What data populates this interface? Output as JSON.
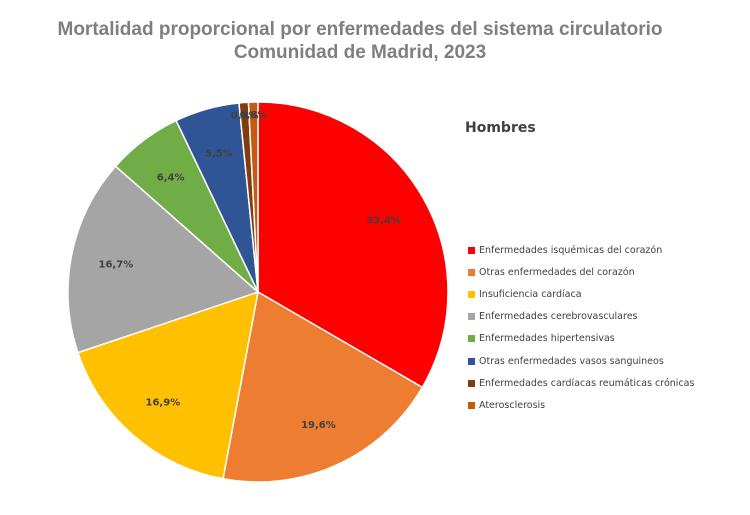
{
  "title_line1": "Mortalidad proporcional por enfermedades del sistema circulatorio",
  "title_line2": "Comunidad de Madrid, 2023",
  "chart_data": {
    "type": "pie",
    "subtitle": "Hombres",
    "legend_position": "right",
    "slices": [
      {
        "name": "Enfermedades isquémicas del corazón",
        "value": 33.4,
        "label": "33,4%",
        "color": "#ff0000"
      },
      {
        "name": "Otras enfermedades del corazón",
        "value": 19.6,
        "label": "19,6%",
        "color": "#ed7d31"
      },
      {
        "name": "Insuficiencia cardíaca",
        "value": 16.9,
        "label": "16,9%",
        "color": "#ffc000"
      },
      {
        "name": "Enfermedades cerebrovasculares",
        "value": 16.7,
        "label": "16,7%",
        "color": "#a5a5a5"
      },
      {
        "name": "Enfermedades hipertensivas",
        "value": 6.4,
        "label": "6,4%",
        "color": "#70ad47"
      },
      {
        "name": "Otras enfermedades vasos sanguineos",
        "value": 5.5,
        "label": "5,5%",
        "color": "#2f5597"
      },
      {
        "name": "Enfermedades cardíacas reumáticas crónicas",
        "value": 0.8,
        "label": "0,8%",
        "color": "#843c0c"
      },
      {
        "name": "Aterosclerosis",
        "value": 0.8,
        "label": "0,8%",
        "color": "#c55a11"
      }
    ]
  }
}
